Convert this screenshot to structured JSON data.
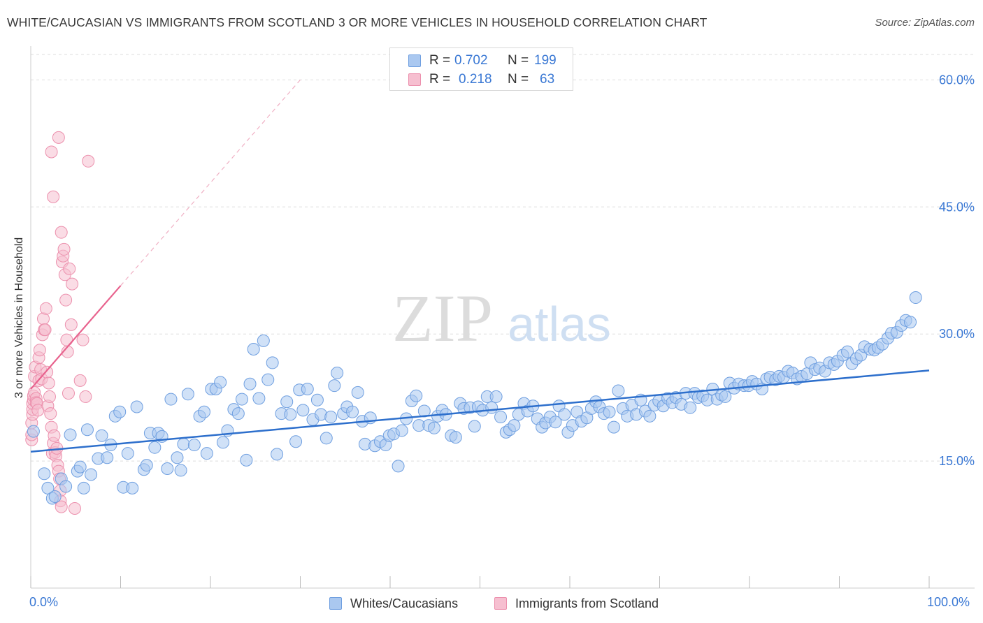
{
  "title": "WHITE/CAUCASIAN VS IMMIGRANTS FROM SCOTLAND 3 OR MORE VEHICLES IN HOUSEHOLD CORRELATION CHART",
  "source": "Source: ZipAtlas.com",
  "watermark": {
    "zip": "ZIP",
    "atlas": "atlas"
  },
  "legend": {
    "series1": {
      "r_label": "R =",
      "r_value": "0.702",
      "n_label": "N =",
      "n_value": "199"
    },
    "series2": {
      "r_label": "R =",
      "r_value": "0.218",
      "n_label": "N =",
      "n_value": "63"
    }
  },
  "bottom_legend": {
    "series1": "Whites/Caucasians",
    "series2": "Immigrants from Scotland"
  },
  "colors": {
    "blue_fill": "#aac8f0",
    "blue_stroke": "#6f9fe0",
    "blue_line": "#2d6fcc",
    "pink_fill": "#f6bfd0",
    "pink_stroke": "#ec90ad",
    "pink_line": "#e8638e",
    "axis_text": "#3a78d4",
    "grid": "#dddddd"
  },
  "chart_data": {
    "type": "scatter",
    "title": "WHITE/CAUCASIAN VS IMMIGRANTS FROM SCOTLAND 3 OR MORE VEHICLES IN HOUSEHOLD CORRELATION CHART",
    "xlabel": "",
    "ylabel": "3 or more Vehicles in Household",
    "xlim": [
      0,
      100
    ],
    "ylim": [
      0,
      63
    ],
    "x_tick_labels": [
      "0.0%",
      "100.0%"
    ],
    "y_ticks": [
      15,
      30,
      45,
      60
    ],
    "y_tick_labels": [
      "15.0%",
      "30.0%",
      "45.0%",
      "60.0%"
    ],
    "series": [
      {
        "name": "Whites/Caucasians",
        "r": 0.702,
        "n": 199,
        "trend": {
          "x": [
            0,
            100
          ],
          "y": [
            16.1,
            25.7
          ]
        },
        "points": [
          [
            0.3,
            18.5
          ],
          [
            1.5,
            13.5
          ],
          [
            1.9,
            11.8
          ],
          [
            2.4,
            10.6
          ],
          [
            2.7,
            10.8
          ],
          [
            3.4,
            12.9
          ],
          [
            3.9,
            12.0
          ],
          [
            4.4,
            18.1
          ],
          [
            5.2,
            13.8
          ],
          [
            5.5,
            14.3
          ],
          [
            5.9,
            11.8
          ],
          [
            6.3,
            18.7
          ],
          [
            6.7,
            13.4
          ],
          [
            7.5,
            15.3
          ],
          [
            7.9,
            18.0
          ],
          [
            8.5,
            15.4
          ],
          [
            8.9,
            16.9
          ],
          [
            9.4,
            20.3
          ],
          [
            9.9,
            20.8
          ],
          [
            10.3,
            11.9
          ],
          [
            10.8,
            15.9
          ],
          [
            11.3,
            11.8
          ],
          [
            11.8,
            21.4
          ],
          [
            12.6,
            14.0
          ],
          [
            12.9,
            14.5
          ],
          [
            13.3,
            18.3
          ],
          [
            13.8,
            16.6
          ],
          [
            14.2,
            18.3
          ],
          [
            14.6,
            17.9
          ],
          [
            15.2,
            14.1
          ],
          [
            15.6,
            22.3
          ],
          [
            16.3,
            15.4
          ],
          [
            16.7,
            13.9
          ],
          [
            17.0,
            17.0
          ],
          [
            17.5,
            22.9
          ],
          [
            18.2,
            16.9
          ],
          [
            18.8,
            20.3
          ],
          [
            19.3,
            20.8
          ],
          [
            19.6,
            15.9
          ],
          [
            20.1,
            23.5
          ],
          [
            20.6,
            23.5
          ],
          [
            21.1,
            24.3
          ],
          [
            21.4,
            17.2
          ],
          [
            21.9,
            18.6
          ],
          [
            22.6,
            21.1
          ],
          [
            23.1,
            20.6
          ],
          [
            23.5,
            22.3
          ],
          [
            24.0,
            15.1
          ],
          [
            24.4,
            24.1
          ],
          [
            24.8,
            28.2
          ],
          [
            25.4,
            22.4
          ],
          [
            25.9,
            29.2
          ],
          [
            26.4,
            24.6
          ],
          [
            26.9,
            26.6
          ],
          [
            27.4,
            15.8
          ],
          [
            27.9,
            20.6
          ],
          [
            28.5,
            22.0
          ],
          [
            28.9,
            20.5
          ],
          [
            29.5,
            17.3
          ],
          [
            29.9,
            23.4
          ],
          [
            30.3,
            21.0
          ],
          [
            30.8,
            23.5
          ],
          [
            31.4,
            19.9
          ],
          [
            31.9,
            22.2
          ],
          [
            32.3,
            20.5
          ],
          [
            32.9,
            17.7
          ],
          [
            33.4,
            20.2
          ],
          [
            33.8,
            23.9
          ],
          [
            34.1,
            25.4
          ],
          [
            34.8,
            20.6
          ],
          [
            35.2,
            21.4
          ],
          [
            35.8,
            20.8
          ],
          [
            36.4,
            23.1
          ],
          [
            36.9,
            19.7
          ],
          [
            37.2,
            17.0
          ],
          [
            37.8,
            20.1
          ],
          [
            38.3,
            16.8
          ],
          [
            38.9,
            17.3
          ],
          [
            39.5,
            16.9
          ],
          [
            39.9,
            18.0
          ],
          [
            40.4,
            18.2
          ],
          [
            40.9,
            14.4
          ],
          [
            41.3,
            18.6
          ],
          [
            41.8,
            20.0
          ],
          [
            42.4,
            22.1
          ],
          [
            42.9,
            22.7
          ],
          [
            43.2,
            19.2
          ],
          [
            43.8,
            20.9
          ],
          [
            44.3,
            19.2
          ],
          [
            44.9,
            18.9
          ],
          [
            45.3,
            20.3
          ],
          [
            45.8,
            21.0
          ],
          [
            46.2,
            20.5
          ],
          [
            46.8,
            18.0
          ],
          [
            47.3,
            17.8
          ],
          [
            47.8,
            21.8
          ],
          [
            48.2,
            21.2
          ],
          [
            48.9,
            21.3
          ],
          [
            49.4,
            19.1
          ],
          [
            49.8,
            21.4
          ],
          [
            50.3,
            21.0
          ],
          [
            50.8,
            22.6
          ],
          [
            51.3,
            21.3
          ],
          [
            51.8,
            22.6
          ],
          [
            52.3,
            20.2
          ],
          [
            52.9,
            18.4
          ],
          [
            53.3,
            18.7
          ],
          [
            53.8,
            19.2
          ],
          [
            54.3,
            20.5
          ],
          [
            54.9,
            21.8
          ],
          [
            55.3,
            20.9
          ],
          [
            55.9,
            21.5
          ],
          [
            56.4,
            20.0
          ],
          [
            56.9,
            19.0
          ],
          [
            57.3,
            19.5
          ],
          [
            57.8,
            20.2
          ],
          [
            58.4,
            19.6
          ],
          [
            58.8,
            21.5
          ],
          [
            59.4,
            20.5
          ],
          [
            59.8,
            18.4
          ],
          [
            60.3,
            19.2
          ],
          [
            60.8,
            20.8
          ],
          [
            61.3,
            19.7
          ],
          [
            61.9,
            20.1
          ],
          [
            62.4,
            21.2
          ],
          [
            62.9,
            22.0
          ],
          [
            63.3,
            21.4
          ],
          [
            63.8,
            20.6
          ],
          [
            64.4,
            20.8
          ],
          [
            64.9,
            19.0
          ],
          [
            65.4,
            23.3
          ],
          [
            65.9,
            21.2
          ],
          [
            66.4,
            20.3
          ],
          [
            66.9,
            21.6
          ],
          [
            67.4,
            20.5
          ],
          [
            67.9,
            22.2
          ],
          [
            68.4,
            20.9
          ],
          [
            68.9,
            20.3
          ],
          [
            69.4,
            21.6
          ],
          [
            69.9,
            22.1
          ],
          [
            70.4,
            21.5
          ],
          [
            70.9,
            22.4
          ],
          [
            71.4,
            21.9
          ],
          [
            71.8,
            22.5
          ],
          [
            72.4,
            21.7
          ],
          [
            72.9,
            23.0
          ],
          [
            73.4,
            21.3
          ],
          [
            73.9,
            23.0
          ],
          [
            74.3,
            22.5
          ],
          [
            74.8,
            22.7
          ],
          [
            75.3,
            22.2
          ],
          [
            75.9,
            23.5
          ],
          [
            76.4,
            22.3
          ],
          [
            76.9,
            22.8
          ],
          [
            77.3,
            22.6
          ],
          [
            77.8,
            24.2
          ],
          [
            78.3,
            23.6
          ],
          [
            78.8,
            24.1
          ],
          [
            79.4,
            23.9
          ],
          [
            79.9,
            23.9
          ],
          [
            80.3,
            24.4
          ],
          [
            80.8,
            24.1
          ],
          [
            81.4,
            23.5
          ],
          [
            81.9,
            24.7
          ],
          [
            82.3,
            24.9
          ],
          [
            82.9,
            24.6
          ],
          [
            83.3,
            25.0
          ],
          [
            83.8,
            24.9
          ],
          [
            84.3,
            25.6
          ],
          [
            84.8,
            25.4
          ],
          [
            85.3,
            24.7
          ],
          [
            85.8,
            25.0
          ],
          [
            86.4,
            25.3
          ],
          [
            86.8,
            26.6
          ],
          [
            87.3,
            25.8
          ],
          [
            87.8,
            26.0
          ],
          [
            88.4,
            25.6
          ],
          [
            88.9,
            26.6
          ],
          [
            89.4,
            26.4
          ],
          [
            89.8,
            26.8
          ],
          [
            90.4,
            27.5
          ],
          [
            90.9,
            27.9
          ],
          [
            91.4,
            26.5
          ],
          [
            91.9,
            27.1
          ],
          [
            92.4,
            27.5
          ],
          [
            92.8,
            28.5
          ],
          [
            93.4,
            28.2
          ],
          [
            93.9,
            28.1
          ],
          [
            94.3,
            28.4
          ],
          [
            94.8,
            28.8
          ],
          [
            95.4,
            29.5
          ],
          [
            95.8,
            30.1
          ],
          [
            96.4,
            30.2
          ],
          [
            96.9,
            31.0
          ],
          [
            97.4,
            31.6
          ],
          [
            97.9,
            31.4
          ],
          [
            98.5,
            34.3
          ]
        ]
      },
      {
        "name": "Immigrants from Scotland",
        "r": 0.218,
        "n": 63,
        "trend": {
          "x": [
            0,
            10
          ],
          "y": [
            23.5,
            35.7
          ],
          "dashed_to": {
            "x": 30,
            "y": 60
          }
        },
        "points": [
          [
            0.1,
            17.5
          ],
          [
            0.1,
            18.1
          ],
          [
            0.1,
            19.5
          ],
          [
            0.2,
            20.5
          ],
          [
            0.2,
            21.1
          ],
          [
            0.2,
            21.8
          ],
          [
            0.3,
            22.2
          ],
          [
            0.3,
            22.7
          ],
          [
            0.4,
            23.1
          ],
          [
            0.4,
            25.0
          ],
          [
            0.5,
            26.1
          ],
          [
            0.6,
            22.4
          ],
          [
            0.6,
            21.9
          ],
          [
            0.7,
            21.8
          ],
          [
            0.8,
            21.0
          ],
          [
            0.9,
            24.5
          ],
          [
            0.9,
            27.2
          ],
          [
            1.0,
            28.1
          ],
          [
            1.1,
            25.8
          ],
          [
            1.2,
            24.7
          ],
          [
            1.3,
            29.9
          ],
          [
            1.4,
            31.8
          ],
          [
            1.5,
            30.5
          ],
          [
            1.6,
            30.5
          ],
          [
            1.7,
            33.0
          ],
          [
            1.8,
            25.5
          ],
          [
            1.9,
            21.5
          ],
          [
            2.0,
            24.2
          ],
          [
            2.1,
            22.6
          ],
          [
            2.2,
            20.6
          ],
          [
            2.3,
            19.0
          ],
          [
            2.4,
            15.9
          ],
          [
            2.5,
            17.1
          ],
          [
            2.6,
            18.0
          ],
          [
            2.7,
            16.0
          ],
          [
            2.8,
            15.6
          ],
          [
            2.9,
            16.5
          ],
          [
            3.0,
            14.5
          ],
          [
            3.1,
            13.8
          ],
          [
            3.2,
            12.9
          ],
          [
            3.3,
            11.5
          ],
          [
            3.3,
            10.3
          ],
          [
            3.4,
            9.6
          ],
          [
            3.5,
            38.5
          ],
          [
            3.6,
            39.2
          ],
          [
            3.7,
            40.0
          ],
          [
            3.8,
            37.0
          ],
          [
            3.9,
            34.0
          ],
          [
            4.0,
            29.3
          ],
          [
            4.1,
            27.9
          ],
          [
            4.2,
            23.0
          ],
          [
            4.3,
            37.7
          ],
          [
            4.5,
            31.1
          ],
          [
            4.6,
            35.9
          ],
          [
            2.3,
            51.5
          ],
          [
            2.5,
            46.2
          ],
          [
            3.1,
            53.2
          ],
          [
            3.4,
            42.0
          ],
          [
            4.9,
            9.4
          ],
          [
            5.5,
            24.5
          ],
          [
            5.8,
            29.3
          ],
          [
            6.1,
            22.6
          ],
          [
            6.4,
            50.4
          ]
        ]
      }
    ]
  }
}
